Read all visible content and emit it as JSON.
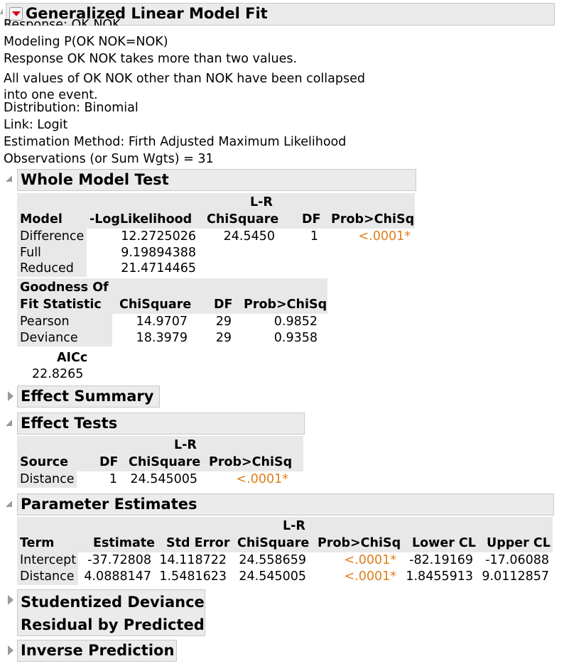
{
  "report": {
    "title": "Generalized Linear Model Fit",
    "info_lines": [
      "Response: OK NOK",
      "Modeling P(OK NOK=NOK)",
      "Response OK NOK takes more than two values.",
      "All values of OK NOK other than NOK have been collapsed",
      "into one event.",
      "Distribution: Binomial",
      "Link: Logit",
      "Estimation Method: Firth Adjusted Maximum Likelihood",
      "Observations (or Sum Wgts) = 31"
    ]
  },
  "whole_model_test": {
    "title": "Whole Model Test",
    "headers": {
      "model": "Model",
      "loglik": "-LogLikelihood",
      "lr_top": "L-R",
      "chisq": "ChiSquare",
      "df": "DF",
      "prob": "Prob>ChiSq"
    },
    "rows": [
      {
        "model": "Difference",
        "loglik": "12.2725026",
        "chisq": "24.5450",
        "df": "1",
        "prob": "<.0001*"
      },
      {
        "model": "Full",
        "loglik": "9.19894388",
        "chisq": "",
        "df": "",
        "prob": ""
      },
      {
        "model": "Reduced",
        "loglik": "21.4714465",
        "chisq": "",
        "df": "",
        "prob": ""
      }
    ],
    "gof": {
      "headers": {
        "stat_1": "Goodness Of",
        "stat_2": "Fit Statistic",
        "chisq": "ChiSquare",
        "df": "DF",
        "prob": "Prob>ChiSq"
      },
      "rows": [
        {
          "stat": "Pearson",
          "chisq": "14.9707",
          "df": "29",
          "prob": "0.9852"
        },
        {
          "stat": "Deviance",
          "chisq": "18.3979",
          "df": "29",
          "prob": "0.9358"
        }
      ]
    },
    "aicc_label": "AICc",
    "aicc_value": "22.8265"
  },
  "effect_summary": {
    "title": "Effect Summary"
  },
  "effect_tests": {
    "title": "Effect Tests",
    "headers": {
      "source": "Source",
      "df": "DF",
      "lr_top": "L-R",
      "chisq": "ChiSquare",
      "prob": "Prob>ChiSq"
    },
    "rows": [
      {
        "source": "Distance",
        "df": "1",
        "chisq": "24.545005",
        "prob": "<.0001*"
      }
    ]
  },
  "parameter_estimates": {
    "title": "Parameter Estimates",
    "headers": {
      "term": "Term",
      "estimate": "Estimate",
      "stderr": "Std Error",
      "lr_top": "L-R",
      "chisq": "ChiSquare",
      "prob": "Prob>ChiSq",
      "lower": "Lower CL",
      "upper": "Upper CL"
    },
    "rows": [
      {
        "term": "Intercept",
        "estimate": "-37.72808",
        "stderr": "14.118722",
        "chisq": "24.558659",
        "prob": "<.0001*",
        "lower": "-82.19169",
        "upper": "-17.06088"
      },
      {
        "term": "Distance",
        "estimate": "4.0888147",
        "stderr": "1.5481623",
        "chisq": "24.545005",
        "prob": "<.0001*",
        "lower": "1.8455913",
        "upper": "9.0112857"
      }
    ]
  },
  "studentized": {
    "title_1": "Studentized Deviance",
    "title_2": "Residual by Predicted"
  },
  "inverse_prediction": {
    "title": "Inverse Prediction"
  },
  "colors": {
    "accent_orange": "#e07f1b",
    "header_gray": "#ebebeb",
    "menu_red": "#d6001c"
  }
}
